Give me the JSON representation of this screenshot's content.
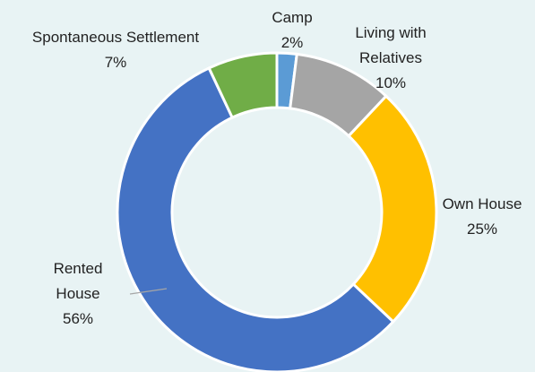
{
  "chart_data": {
    "type": "donut",
    "categories": [
      "Camp",
      "Living with Relatives",
      "Own House",
      "Rented House",
      "Spontaneous Settlement"
    ],
    "values": [
      2,
      10,
      25,
      56,
      7
    ],
    "value_labels": [
      "2%",
      "10%",
      "25%",
      "56%",
      "7%"
    ],
    "colors": [
      "#5b9bd5",
      "#a5a5a5",
      "#ffc000",
      "#4472c4",
      "#70ad47"
    ]
  }
}
